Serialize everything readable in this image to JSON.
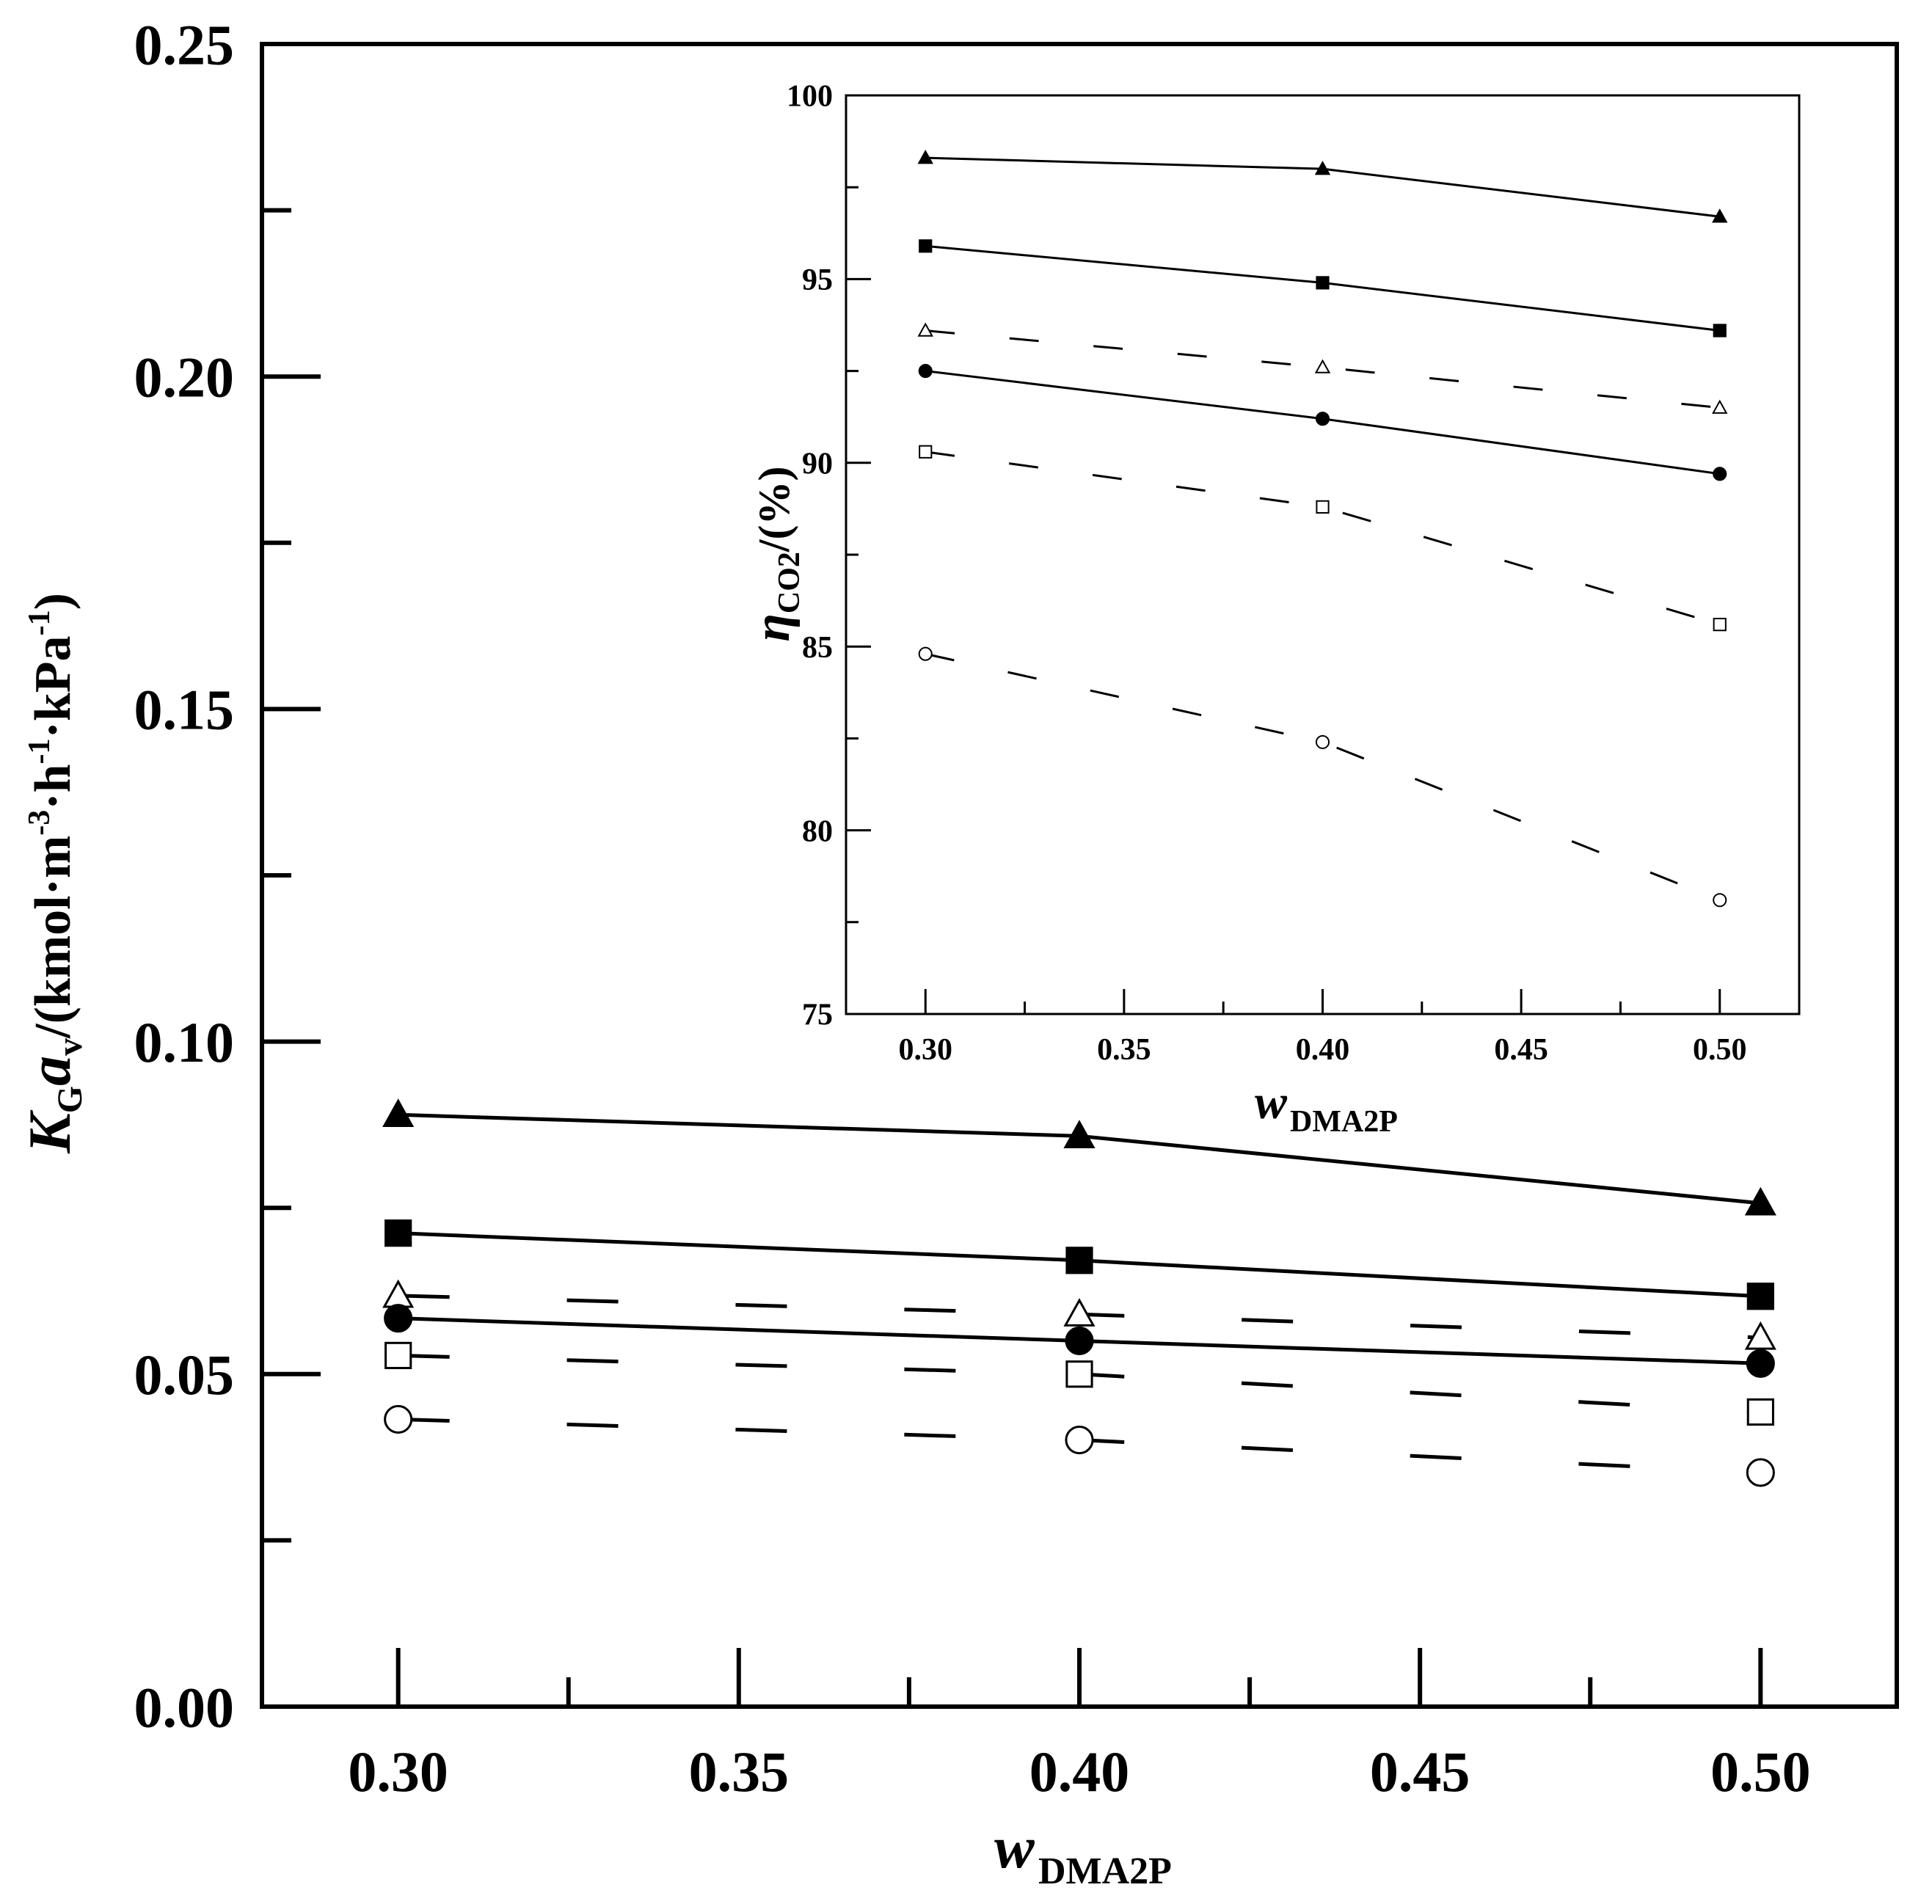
{
  "chart_data": [
    {
      "id": "main",
      "type": "line",
      "title": "",
      "xlabel_main": "w",
      "xlabel_sub": "DMA2P",
      "ylabel_parts": {
        "k": "K",
        "g": "G",
        "a": "a",
        "v": "v",
        "units_pre": "/(kmol·m",
        "exp1": "-3",
        "units_mid1": "·h",
        "exp2": "-1",
        "units_mid2": "·kPa",
        "exp3": "-1",
        "units_post": ")"
      },
      "xlim": [
        0.28,
        0.52
      ],
      "ylim": [
        0.0,
        0.25
      ],
      "x_ticks": [
        0.3,
        0.35,
        0.4,
        0.45,
        0.5
      ],
      "x_tick_labels": [
        "0.30",
        "0.35",
        "0.40",
        "0.45",
        "0.50"
      ],
      "y_ticks": [
        0.0,
        0.05,
        0.1,
        0.15,
        0.2,
        0.25
      ],
      "y_tick_labels": [
        "0.00",
        "0.05",
        "0.10",
        "0.15",
        "0.20",
        "0.25"
      ],
      "x": [
        0.3,
        0.4,
        0.5
      ],
      "series": [
        {
          "marker": "triangle-filled",
          "line": "solid",
          "values": [
            0.089,
            0.0858,
            0.0757
          ]
        },
        {
          "marker": "square-filled",
          "line": "solid",
          "values": [
            0.0712,
            0.0671,
            0.0617
          ]
        },
        {
          "marker": "triangle-open",
          "line": "dashed",
          "values": [
            0.0618,
            0.059,
            0.0555
          ]
        },
        {
          "marker": "circle-filled",
          "line": "solid",
          "values": [
            0.0584,
            0.055,
            0.0516
          ]
        },
        {
          "marker": "square-open",
          "line": "dashed",
          "values": [
            0.0528,
            0.05,
            0.0443
          ]
        },
        {
          "marker": "circle-open",
          "line": "dashed",
          "values": [
            0.0432,
            0.0401,
            0.0352
          ]
        }
      ]
    },
    {
      "id": "inset",
      "type": "line",
      "title": "",
      "xlabel_main": "w",
      "xlabel_sub": "DMA2P",
      "ylabel_main": "η",
      "ylabel_sub": "CO2",
      "ylabel_units": "/(%)",
      "xlim": [
        0.28,
        0.52
      ],
      "ylim": [
        75,
        100
      ],
      "x_ticks": [
        0.3,
        0.35,
        0.4,
        0.45,
        0.5
      ],
      "x_tick_labels": [
        "0.30",
        "0.35",
        "0.40",
        "0.45",
        "0.50"
      ],
      "y_ticks": [
        75,
        80,
        85,
        90,
        95,
        100
      ],
      "y_tick_labels": [
        "75",
        "80",
        "85",
        "90",
        "95",
        "100"
      ],
      "x": [
        0.3,
        0.4,
        0.5
      ],
      "series": [
        {
          "marker": "triangle-filled",
          "line": "solid",
          "values": [
            98.3,
            98.0,
            96.7
          ]
        },
        {
          "marker": "square-filled",
          "line": "solid",
          "values": [
            95.9,
            94.9,
            93.6
          ]
        },
        {
          "marker": "triangle-open",
          "line": "dashed",
          "values": [
            93.6,
            92.6,
            91.5
          ]
        },
        {
          "marker": "circle-filled",
          "line": "solid",
          "values": [
            92.5,
            91.2,
            89.7
          ]
        },
        {
          "marker": "square-open",
          "line": "dashed",
          "values": [
            90.3,
            88.8,
            85.6
          ]
        },
        {
          "marker": "circle-open",
          "line": "dashed",
          "values": [
            84.8,
            82.4,
            78.1
          ]
        }
      ]
    }
  ]
}
